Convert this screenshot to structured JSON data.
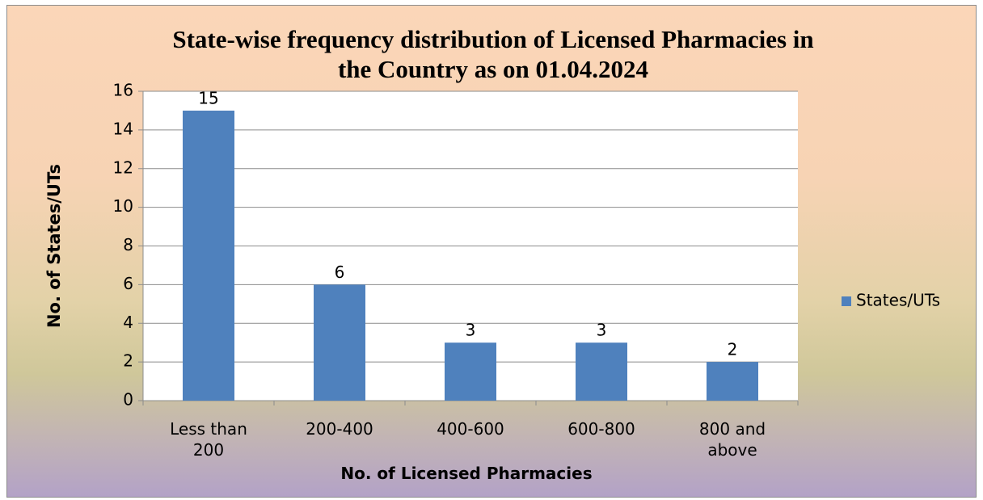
{
  "chart_data": {
    "type": "bar",
    "title": "State-wise frequency distribution of Licensed Pharmacies in the Country as on 01.04.2024",
    "x_label": "No. of Licensed Pharmacies",
    "y_label": "No. of States/UTs",
    "categories": [
      "Less than 200",
      "200-400",
      "400-600",
      "600-800",
      "800 and above"
    ],
    "series": [
      {
        "name": "States/UTs",
        "color": "#4f81bd",
        "values": [
          15,
          6,
          3,
          3,
          2
        ]
      }
    ],
    "ylim": [
      0,
      16
    ],
    "yticks": [
      0,
      2,
      4,
      6,
      8,
      10,
      12,
      14,
      16
    ],
    "grid": true,
    "legend": "right"
  }
}
